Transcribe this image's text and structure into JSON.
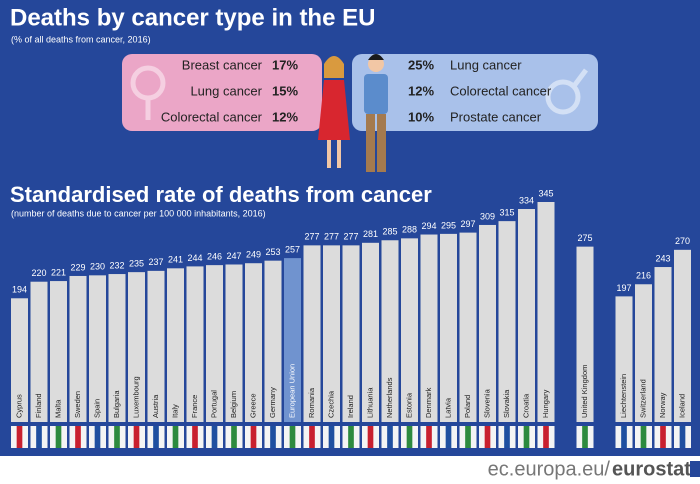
{
  "header": {
    "title": "Deaths by cancer type in the EU",
    "subtitle": "(% of all deaths from cancer, 2016)"
  },
  "women": [
    {
      "label": "Breast cancer",
      "share": "17%"
    },
    {
      "label": "Lung cancer",
      "share": "15%"
    },
    {
      "label": "Colorectal cancer",
      "share": "12%"
    }
  ],
  "men": [
    {
      "label": "Lung cancer",
      "share": "25%"
    },
    {
      "label": "Colorectal cancer",
      "share": "12%"
    },
    {
      "label": "Prostate cancer",
      "share": "10%"
    }
  ],
  "chart_data": {
    "type": "bar",
    "title": "Standardised rate of deaths from cancer",
    "subtitle": "(number of deaths due to cancer per 100 000 inhabitants, 2016)",
    "categories": [
      "Cyprus",
      "Finland",
      "Malta",
      "Sweden",
      "Spain",
      "Bulgaria",
      "Luxembourg",
      "Austria",
      "Italy",
      "France",
      "Portugal",
      "Belgium",
      "Greece",
      "Germany",
      "European Union",
      "Romania",
      "Czechia",
      "Ireland",
      "Lithuania",
      "Netherlands",
      "Estonia",
      "Denmark",
      "Latvia",
      "Poland",
      "Slovenia",
      "Slovakia",
      "Croatia",
      "Hungary",
      null,
      "United Kingdom",
      null,
      "Liechtenstein",
      "Switzerland",
      "Norway",
      "Iceland"
    ],
    "values": [
      194,
      220,
      221,
      229,
      230,
      232,
      235,
      237,
      241,
      244,
      246,
      247,
      249,
      253,
      257,
      277,
      277,
      277,
      281,
      285,
      288,
      294,
      295,
      297,
      309,
      315,
      334,
      345,
      null,
      275,
      null,
      197,
      216,
      243,
      270
    ],
    "colors": [
      "#dcdcdc",
      "#dcdcdc",
      "#dcdcdc",
      "#dcdcdc",
      "#dcdcdc",
      "#dcdcdc",
      "#dcdcdc",
      "#dcdcdc",
      "#dcdcdc",
      "#dcdcdc",
      "#dcdcdc",
      "#dcdcdc",
      "#dcdcdc",
      "#dcdcdc",
      "#7093cf",
      "#dcdcdc",
      "#dcdcdc",
      "#dcdcdc",
      "#dcdcdc",
      "#dcdcdc",
      "#dcdcdc",
      "#dcdcdc",
      "#dcdcdc",
      "#dcdcdc",
      "#dcdcdc",
      "#dcdcdc",
      "#dcdcdc",
      "#dcdcdc",
      null,
      "#dcdcdc",
      null,
      "#dcdcdc",
      "#dcdcdc",
      "#dcdcdc",
      "#dcdcdc"
    ]
  },
  "footer": {
    "site": "ec.europa.eu/",
    "brand": "eurostat"
  }
}
